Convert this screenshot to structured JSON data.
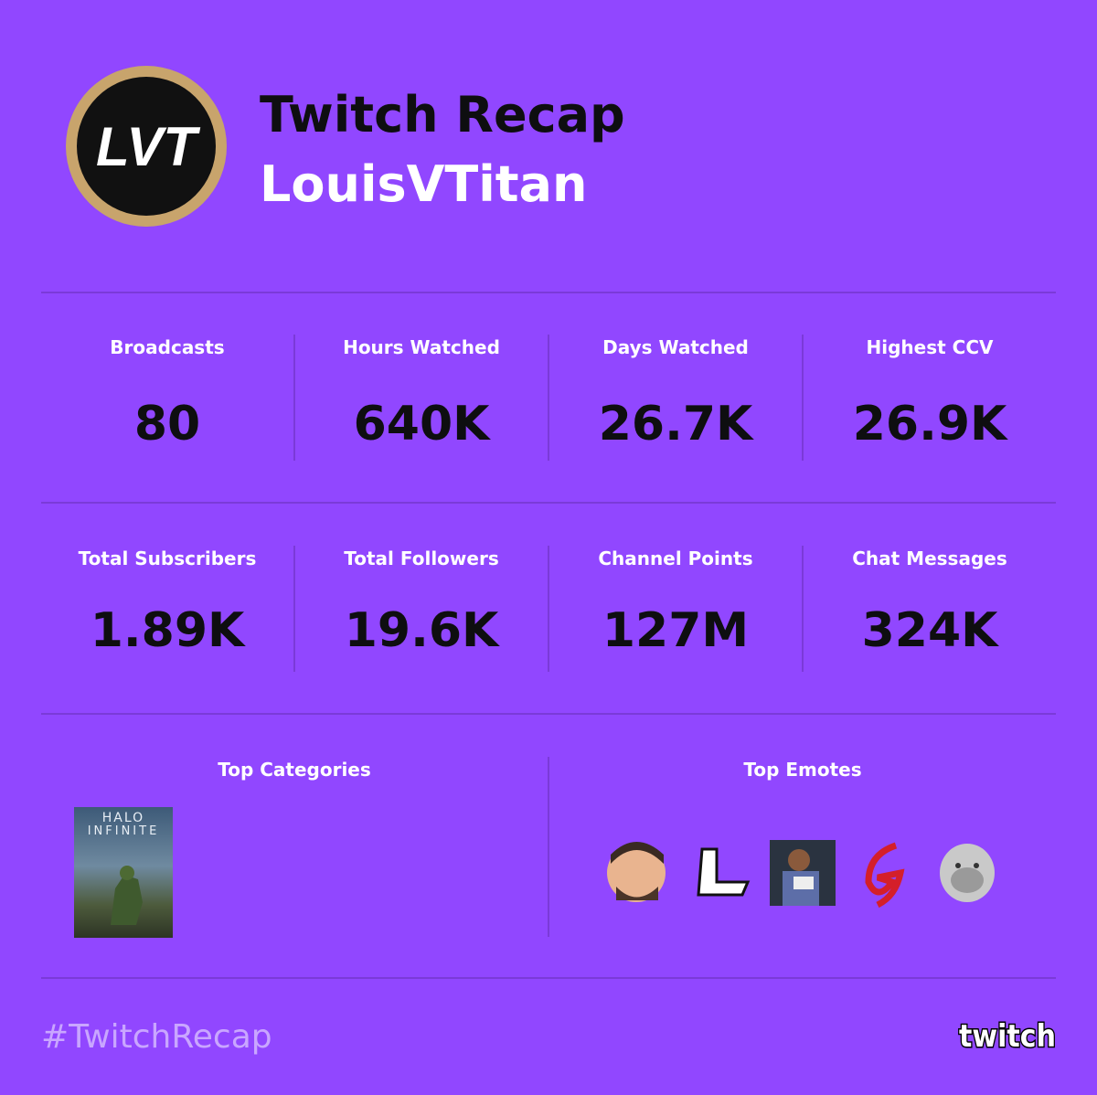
{
  "header": {
    "logo_text": "LVT",
    "title": "Twitch Recap",
    "channel": "LouisVTitan"
  },
  "stats": [
    [
      {
        "label": "Broadcasts",
        "value": "80"
      },
      {
        "label": "Hours Watched",
        "value": "640K"
      },
      {
        "label": "Days Watched",
        "value": "26.7K"
      },
      {
        "label": "Highest CCV",
        "value": "26.9K"
      }
    ],
    [
      {
        "label": "Total Subscribers",
        "value": "1.89K"
      },
      {
        "label": "Total Followers",
        "value": "19.6K"
      },
      {
        "label": "Channel Points",
        "value": "127M"
      },
      {
        "label": "Chat Messages",
        "value": "324K"
      }
    ]
  ],
  "top_categories": {
    "title": "Top Categories",
    "items": [
      {
        "cover_text": [
          "HALO",
          "INFINITE"
        ]
      }
    ]
  },
  "top_emotes": {
    "title": "Top Emotes"
  },
  "footer": {
    "hashtag": "#TwitchRecap",
    "brand": "twitch"
  }
}
